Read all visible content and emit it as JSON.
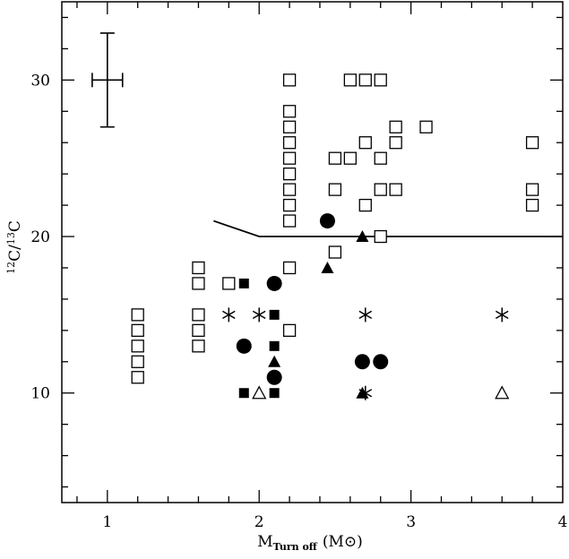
{
  "chart_data": {
    "type": "scatter",
    "title": "",
    "xlabel_main": "M",
    "xlabel_sub": "Turn off",
    "xlabel_unit": "(M⊙)",
    "ylabel_sup1": "12",
    "ylabel_main1": "C/",
    "ylabel_sup2": "13",
    "ylabel_main2": "C",
    "xlim": [
      0.7,
      4.0
    ],
    "ylim": [
      3,
      35
    ],
    "x_ticks": [
      1,
      2,
      3,
      4
    ],
    "y_ticks": [
      10,
      20,
      30
    ],
    "x_tick_labels": [
      "1",
      "2",
      "3",
      "4"
    ],
    "y_tick_labels": [
      "10",
      "20",
      "30"
    ],
    "grid": false,
    "series": [
      {
        "marker": "open-square",
        "points": [
          [
            1.2,
            15
          ],
          [
            1.2,
            14
          ],
          [
            1.2,
            13
          ],
          [
            1.2,
            12
          ],
          [
            1.2,
            11
          ],
          [
            1.6,
            18
          ],
          [
            1.6,
            17
          ],
          [
            1.6,
            15
          ],
          [
            1.6,
            14
          ],
          [
            1.6,
            13
          ],
          [
            1.8,
            17
          ],
          [
            2.2,
            30
          ],
          [
            2.2,
            28
          ],
          [
            2.2,
            27
          ],
          [
            2.2,
            26
          ],
          [
            2.2,
            25
          ],
          [
            2.2,
            24
          ],
          [
            2.2,
            23
          ],
          [
            2.2,
            22
          ],
          [
            2.2,
            21
          ],
          [
            2.2,
            18
          ],
          [
            2.2,
            14
          ],
          [
            2.5,
            25
          ],
          [
            2.5,
            23
          ],
          [
            2.5,
            19
          ],
          [
            2.6,
            30
          ],
          [
            2.6,
            25
          ],
          [
            2.7,
            30
          ],
          [
            2.7,
            26
          ],
          [
            2.7,
            22
          ],
          [
            2.8,
            30
          ],
          [
            2.8,
            25
          ],
          [
            2.8,
            23
          ],
          [
            2.8,
            20
          ],
          [
            2.9,
            27
          ],
          [
            2.9,
            26
          ],
          [
            2.9,
            23
          ],
          [
            3.1,
            27
          ],
          [
            3.8,
            26
          ],
          [
            3.8,
            23
          ],
          [
            3.8,
            22
          ]
        ]
      },
      {
        "marker": "filled-square",
        "points": [
          [
            1.9,
            17
          ],
          [
            1.9,
            10
          ],
          [
            2.1,
            15
          ],
          [
            2.1,
            13
          ],
          [
            2.1,
            10
          ]
        ]
      },
      {
        "marker": "filled-circle",
        "points": [
          [
            1.9,
            13
          ],
          [
            2.1,
            17
          ],
          [
            2.1,
            11
          ],
          [
            2.45,
            21
          ],
          [
            2.68,
            12
          ],
          [
            2.8,
            12
          ]
        ]
      },
      {
        "marker": "filled-triangle",
        "points": [
          [
            2.1,
            12
          ],
          [
            2.45,
            18
          ],
          [
            2.68,
            20
          ],
          [
            2.68,
            10
          ]
        ]
      },
      {
        "marker": "open-triangle",
        "points": [
          [
            2.0,
            10
          ],
          [
            3.6,
            10
          ]
        ]
      },
      {
        "marker": "asterisk",
        "points": [
          [
            1.8,
            15
          ],
          [
            2.0,
            15
          ],
          [
            2.7,
            15
          ],
          [
            2.7,
            10
          ],
          [
            3.6,
            15
          ]
        ]
      }
    ],
    "line": [
      [
        1.7,
        21
      ],
      [
        2.0,
        20
      ],
      [
        4.0,
        20
      ]
    ],
    "error_bar": {
      "x": 1.0,
      "y": 30,
      "xerr": 0.1,
      "yerr": 3
    }
  }
}
